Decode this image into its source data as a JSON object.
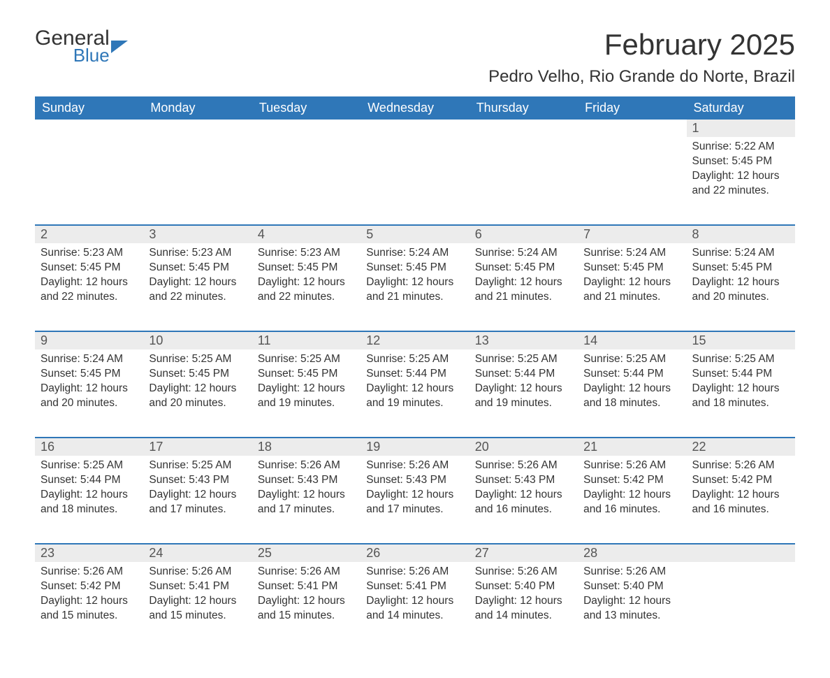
{
  "brand": {
    "word1": "General",
    "word2": "Blue",
    "color": "#2f77b8"
  },
  "title": "February 2025",
  "location": "Pedro Velho, Rio Grande do Norte, Brazil",
  "header_bg": "#2f77b8",
  "header_fg": "#ffffff",
  "daynum_bg": "#ececec",
  "weekdays": [
    "Sunday",
    "Monday",
    "Tuesday",
    "Wednesday",
    "Thursday",
    "Friday",
    "Saturday"
  ],
  "weeks": [
    [
      null,
      null,
      null,
      null,
      null,
      null,
      {
        "n": "1",
        "sunrise": "5:22 AM",
        "sunset": "5:45 PM",
        "daylight": "12 hours and 22 minutes."
      }
    ],
    [
      {
        "n": "2",
        "sunrise": "5:23 AM",
        "sunset": "5:45 PM",
        "daylight": "12 hours and 22 minutes."
      },
      {
        "n": "3",
        "sunrise": "5:23 AM",
        "sunset": "5:45 PM",
        "daylight": "12 hours and 22 minutes."
      },
      {
        "n": "4",
        "sunrise": "5:23 AM",
        "sunset": "5:45 PM",
        "daylight": "12 hours and 22 minutes."
      },
      {
        "n": "5",
        "sunrise": "5:24 AM",
        "sunset": "5:45 PM",
        "daylight": "12 hours and 21 minutes."
      },
      {
        "n": "6",
        "sunrise": "5:24 AM",
        "sunset": "5:45 PM",
        "daylight": "12 hours and 21 minutes."
      },
      {
        "n": "7",
        "sunrise": "5:24 AM",
        "sunset": "5:45 PM",
        "daylight": "12 hours and 21 minutes."
      },
      {
        "n": "8",
        "sunrise": "5:24 AM",
        "sunset": "5:45 PM",
        "daylight": "12 hours and 20 minutes."
      }
    ],
    [
      {
        "n": "9",
        "sunrise": "5:24 AM",
        "sunset": "5:45 PM",
        "daylight": "12 hours and 20 minutes."
      },
      {
        "n": "10",
        "sunrise": "5:25 AM",
        "sunset": "5:45 PM",
        "daylight": "12 hours and 20 minutes."
      },
      {
        "n": "11",
        "sunrise": "5:25 AM",
        "sunset": "5:45 PM",
        "daylight": "12 hours and 19 minutes."
      },
      {
        "n": "12",
        "sunrise": "5:25 AM",
        "sunset": "5:44 PM",
        "daylight": "12 hours and 19 minutes."
      },
      {
        "n": "13",
        "sunrise": "5:25 AM",
        "sunset": "5:44 PM",
        "daylight": "12 hours and 19 minutes."
      },
      {
        "n": "14",
        "sunrise": "5:25 AM",
        "sunset": "5:44 PM",
        "daylight": "12 hours and 18 minutes."
      },
      {
        "n": "15",
        "sunrise": "5:25 AM",
        "sunset": "5:44 PM",
        "daylight": "12 hours and 18 minutes."
      }
    ],
    [
      {
        "n": "16",
        "sunrise": "5:25 AM",
        "sunset": "5:44 PM",
        "daylight": "12 hours and 18 minutes."
      },
      {
        "n": "17",
        "sunrise": "5:25 AM",
        "sunset": "5:43 PM",
        "daylight": "12 hours and 17 minutes."
      },
      {
        "n": "18",
        "sunrise": "5:26 AM",
        "sunset": "5:43 PM",
        "daylight": "12 hours and 17 minutes."
      },
      {
        "n": "19",
        "sunrise": "5:26 AM",
        "sunset": "5:43 PM",
        "daylight": "12 hours and 17 minutes."
      },
      {
        "n": "20",
        "sunrise": "5:26 AM",
        "sunset": "5:43 PM",
        "daylight": "12 hours and 16 minutes."
      },
      {
        "n": "21",
        "sunrise": "5:26 AM",
        "sunset": "5:42 PM",
        "daylight": "12 hours and 16 minutes."
      },
      {
        "n": "22",
        "sunrise": "5:26 AM",
        "sunset": "5:42 PM",
        "daylight": "12 hours and 16 minutes."
      }
    ],
    [
      {
        "n": "23",
        "sunrise": "5:26 AM",
        "sunset": "5:42 PM",
        "daylight": "12 hours and 15 minutes."
      },
      {
        "n": "24",
        "sunrise": "5:26 AM",
        "sunset": "5:41 PM",
        "daylight": "12 hours and 15 minutes."
      },
      {
        "n": "25",
        "sunrise": "5:26 AM",
        "sunset": "5:41 PM",
        "daylight": "12 hours and 15 minutes."
      },
      {
        "n": "26",
        "sunrise": "5:26 AM",
        "sunset": "5:41 PM",
        "daylight": "12 hours and 14 minutes."
      },
      {
        "n": "27",
        "sunrise": "5:26 AM",
        "sunset": "5:40 PM",
        "daylight": "12 hours and 14 minutes."
      },
      {
        "n": "28",
        "sunrise": "5:26 AM",
        "sunset": "5:40 PM",
        "daylight": "12 hours and 13 minutes."
      },
      null
    ]
  ],
  "labels": {
    "sunrise": "Sunrise: ",
    "sunset": "Sunset: ",
    "daylight": "Daylight: "
  }
}
